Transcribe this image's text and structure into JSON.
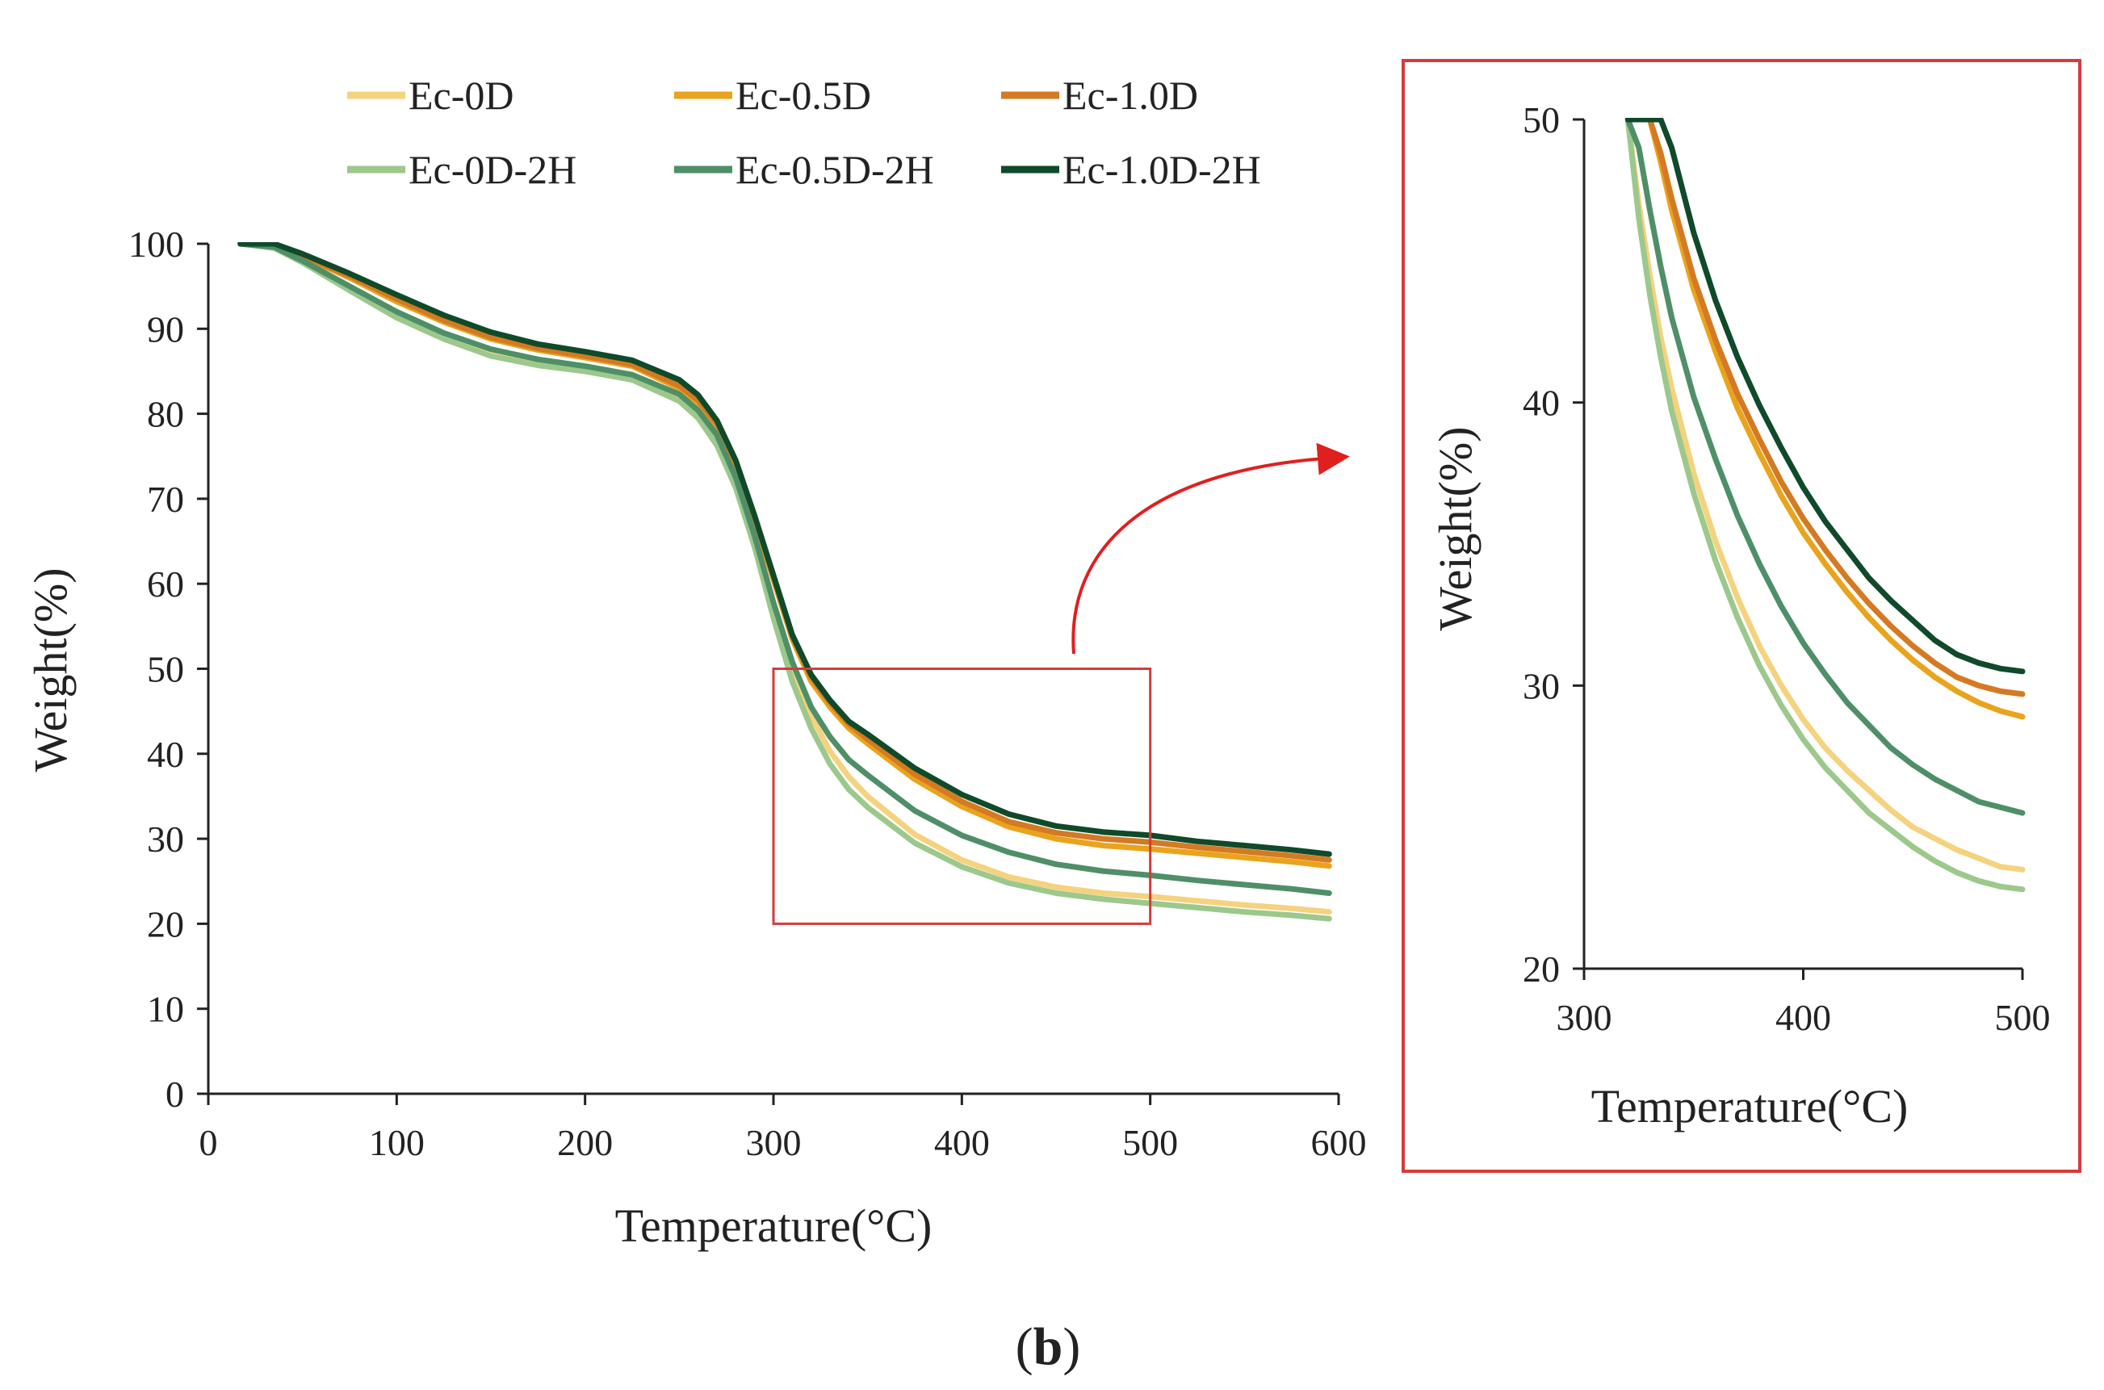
{
  "caption": {
    "open": "(",
    "letter": "b",
    "close": ")"
  },
  "colors": {
    "zoom_box": "#d63a3a",
    "axis": "#222222"
  },
  "chart_data": [
    {
      "id": "main",
      "type": "line",
      "title": "",
      "xlabel": "Temperature(°C)",
      "ylabel": "Weight(%)",
      "xlim": [
        0,
        600
      ],
      "ylim": [
        0,
        100
      ],
      "xticks": [
        0,
        100,
        200,
        300,
        400,
        500,
        600
      ],
      "yticks": [
        0,
        10,
        20,
        30,
        40,
        50,
        60,
        70,
        80,
        90,
        100
      ],
      "grid": false,
      "legend_position": "top",
      "legend_columns": 3,
      "zoom_region": {
        "x": [
          300,
          500
        ],
        "y": [
          20,
          50
        ]
      },
      "x": [
        17,
        35,
        50,
        75,
        100,
        125,
        150,
        175,
        200,
        225,
        250,
        260,
        270,
        280,
        290,
        300,
        310,
        320,
        330,
        340,
        350,
        375,
        400,
        425,
        450,
        475,
        500,
        525,
        550,
        575,
        595
      ],
      "series": [
        {
          "name": "Ec-0D",
          "color": "#f4d27e",
          "values": [
            100,
            99.7,
            98,
            95,
            92,
            89.5,
            87.5,
            86.3,
            85.5,
            84.5,
            82,
            80,
            77,
            72,
            65,
            57,
            50,
            44.5,
            40.3,
            37.3,
            35,
            30.5,
            27.5,
            25.5,
            24.3,
            23.6,
            23.2,
            22.7,
            22.2,
            21.8,
            21.4
          ]
        },
        {
          "name": "Ec-0.5D",
          "color": "#e9a31c",
          "values": [
            100,
            99.8,
            98.5,
            96,
            93.2,
            90.8,
            88.8,
            87.5,
            86.6,
            85.6,
            83,
            81.3,
            78.5,
            74,
            67.5,
            60.5,
            53.5,
            48.5,
            45.5,
            43,
            41.2,
            37,
            33.8,
            31.4,
            30,
            29.2,
            28.8,
            28.3,
            27.8,
            27.3,
            26.8
          ]
        },
        {
          "name": "Ec-1.0D",
          "color": "#d47a22",
          "values": [
            100,
            99.8,
            98.6,
            96.2,
            93.5,
            91,
            89,
            87.7,
            86.8,
            85.8,
            83.3,
            81.6,
            78.8,
            74.3,
            67.8,
            60.8,
            53.8,
            49,
            46,
            43.5,
            41.7,
            37.6,
            34.4,
            32,
            30.7,
            30,
            29.6,
            29,
            28.5,
            28,
            27.5
          ]
        },
        {
          "name": "Ec-0D-2H",
          "color": "#9cc88c",
          "values": [
            100,
            99.5,
            97.8,
            94.5,
            91.3,
            88.8,
            86.8,
            85.7,
            85,
            84,
            81.5,
            79.5,
            76.3,
            71.3,
            64.3,
            56,
            48.5,
            43,
            38.8,
            35.8,
            33.7,
            29.5,
            26.7,
            24.8,
            23.6,
            22.9,
            22.4,
            21.9,
            21.4,
            21,
            20.6
          ]
        },
        {
          "name": "Ec-0.5D-2H",
          "color": "#4f8f68",
          "values": [
            100,
            99.6,
            98,
            95,
            92,
            89.5,
            87.6,
            86.4,
            85.6,
            84.6,
            82.3,
            80.4,
            77.5,
            72.5,
            65.6,
            57.8,
            50.8,
            45.5,
            42,
            39.3,
            37.5,
            33.3,
            30.4,
            28.4,
            27,
            26.2,
            25.7,
            25.1,
            24.6,
            24.1,
            23.6
          ]
        },
        {
          "name": "Ec-1.0D-2H",
          "color": "#0f4a2a",
          "values": [
            100,
            100,
            98.8,
            96.5,
            94,
            91.6,
            89.6,
            88.2,
            87.3,
            86.3,
            84,
            82.2,
            79.2,
            74.5,
            68,
            61,
            54,
            49.3,
            46.3,
            43.8,
            42.3,
            38.3,
            35.2,
            32.9,
            31.5,
            30.8,
            30.4,
            29.7,
            29.2,
            28.7,
            28.2
          ]
        }
      ]
    },
    {
      "id": "inset",
      "type": "line",
      "title": "",
      "xlabel": "Temperature(°C)",
      "ylabel": "Weight(%)",
      "xlim": [
        300,
        500
      ],
      "ylim": [
        20,
        50
      ],
      "xticks": [
        300,
        400,
        500
      ],
      "yticks": [
        20,
        30,
        40,
        50
      ],
      "grid": false,
      "legend_position": "none",
      "x": [
        320,
        325,
        330,
        335,
        340,
        350,
        360,
        370,
        380,
        390,
        400,
        410,
        420,
        430,
        440,
        450,
        460,
        470,
        480,
        490,
        500
      ],
      "series": [
        {
          "name": "Ec-0D",
          "color": "#f4d27e",
          "values": [
            50,
            47,
            44.5,
            42.3,
            40.5,
            37.5,
            35.1,
            33.1,
            31.4,
            30,
            28.8,
            27.8,
            27,
            26.3,
            25.6,
            25,
            24.6,
            24.2,
            23.9,
            23.6,
            23.5
          ]
        },
        {
          "name": "Ec-0.5D",
          "color": "#e9a31c",
          "values": [
            50,
            50,
            50,
            48.5,
            46.8,
            44,
            41.8,
            39.8,
            38.2,
            36.7,
            35.4,
            34.3,
            33.3,
            32.4,
            31.6,
            30.9,
            30.3,
            29.8,
            29.4,
            29.1,
            28.9
          ]
        },
        {
          "name": "Ec-1.0D",
          "color": "#d47a22",
          "values": [
            50,
            50,
            50,
            48.8,
            47.2,
            44.4,
            42.2,
            40.3,
            38.7,
            37.2,
            35.9,
            34.8,
            33.8,
            32.9,
            32.1,
            31.4,
            30.8,
            30.3,
            30,
            29.8,
            29.7
          ]
        },
        {
          "name": "Ec-0D-2H",
          "color": "#9cc88c",
          "values": [
            50,
            46.5,
            43.8,
            41.6,
            39.7,
            36.8,
            34.4,
            32.4,
            30.7,
            29.3,
            28.1,
            27.1,
            26.3,
            25.5,
            24.9,
            24.3,
            23.8,
            23.4,
            23.1,
            22.9,
            22.8
          ]
        },
        {
          "name": "Ec-0.5D-2H",
          "color": "#4f8f68",
          "values": [
            50,
            49,
            46.8,
            44.8,
            43,
            40.2,
            38,
            36,
            34.3,
            32.8,
            31.5,
            30.4,
            29.4,
            28.6,
            27.8,
            27.2,
            26.7,
            26.3,
            25.9,
            25.7,
            25.5
          ]
        },
        {
          "name": "Ec-1.0D-2H",
          "color": "#0f4a2a",
          "values": [
            50,
            50,
            50,
            50,
            49,
            46,
            43.6,
            41.6,
            39.9,
            38.4,
            37,
            35.8,
            34.8,
            33.8,
            33,
            32.3,
            31.6,
            31.1,
            30.8,
            30.6,
            30.5
          ]
        }
      ]
    }
  ]
}
